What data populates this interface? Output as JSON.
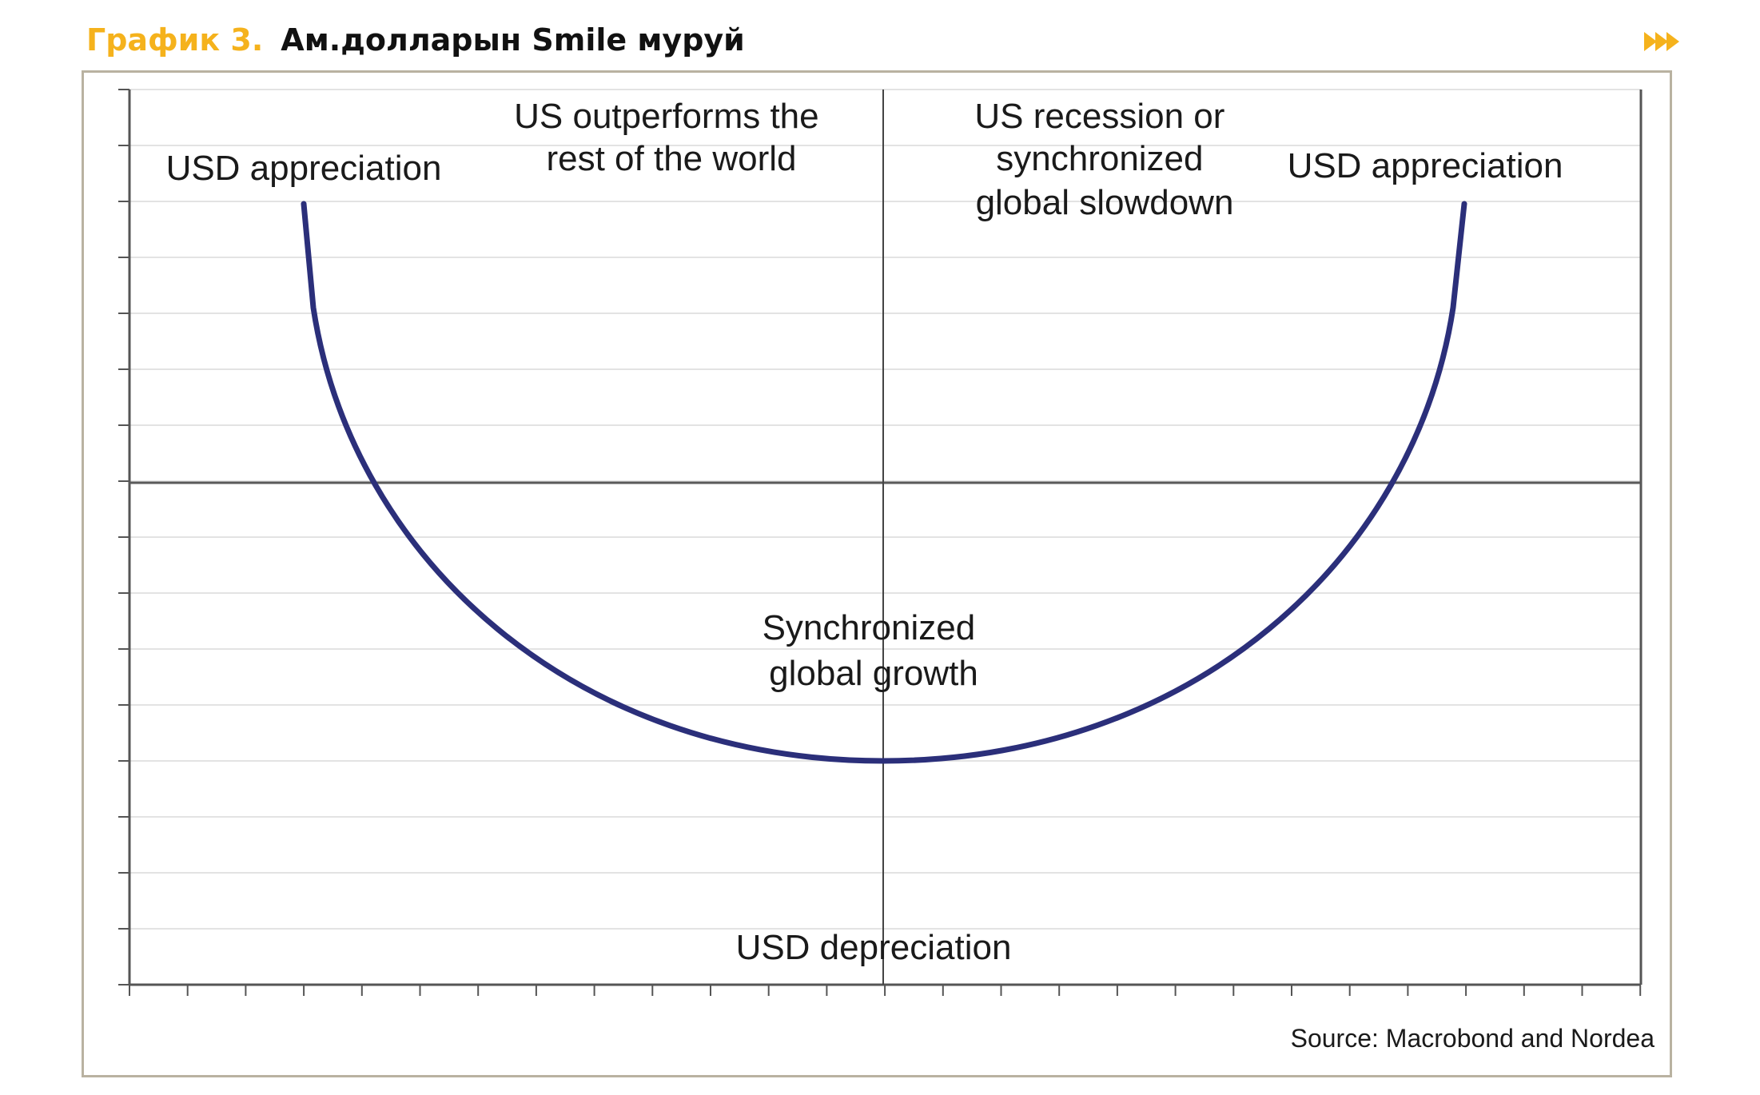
{
  "header": {
    "figure_number": "График 3.",
    "title": "Ам.долларын Smile муруй",
    "accent_color": "#F5B21C",
    "next_icon": "double-chevron-right-icon"
  },
  "diagram": {
    "labels": {
      "top_left": "USD appreciation",
      "top_center_left": [
        "US outperforms the",
        "rest of the world"
      ],
      "top_center_right": [
        "US recession or",
        "synchronized",
        "global slowdown"
      ],
      "top_right": "USD appreciation",
      "center": [
        "Synchronized",
        "global growth"
      ],
      "bottom": "USD depreciation"
    },
    "source": "Source: Macrobond and Nordea",
    "curve_color": "#2B2F7A",
    "grid": true
  }
}
